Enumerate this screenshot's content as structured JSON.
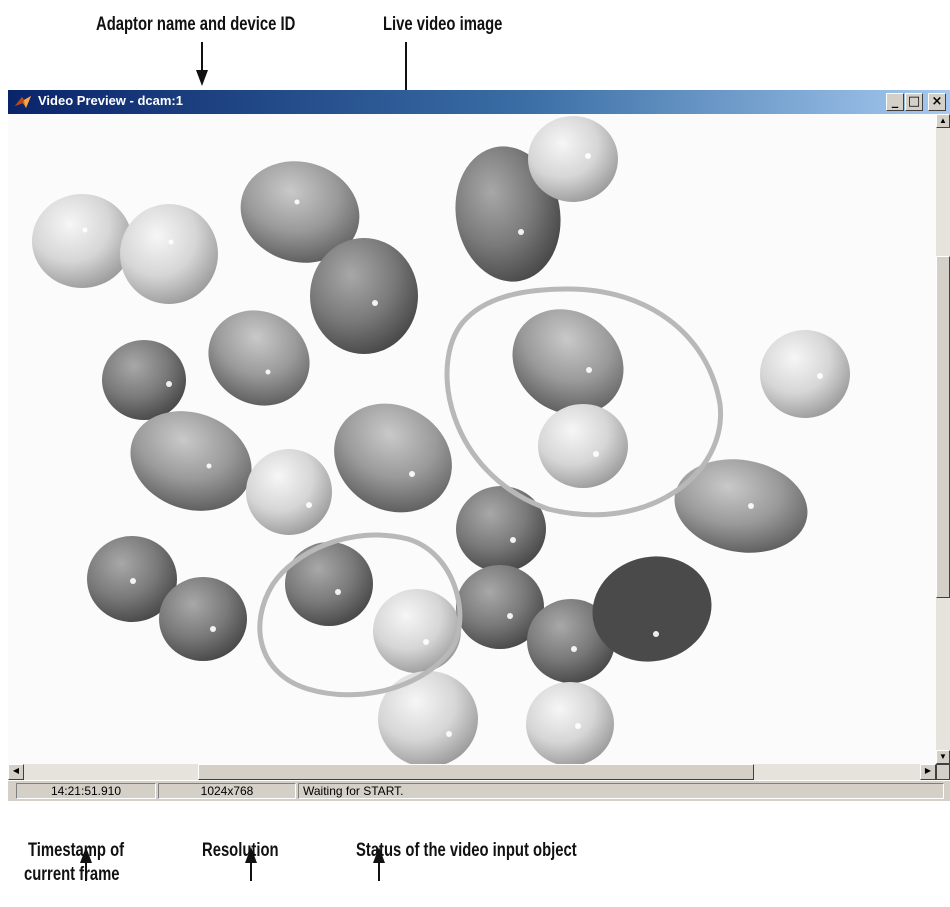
{
  "callouts": {
    "adaptor": "Adaptor name and device ID",
    "live_video": "Live video image",
    "timestamp_line1": "Timestamp of",
    "timestamp_line2": "current frame",
    "resolution": "Resolution",
    "status": "Status of the video input object"
  },
  "window": {
    "title": "Video Preview - dcam:1",
    "app_icon": "matlab-logo-icon",
    "controls": {
      "minimize": "_",
      "maximize": "□",
      "close": "×"
    }
  },
  "statusbar": {
    "timestamp": "14:21:51.910",
    "resolution": "1024x768",
    "status": "Waiting for START."
  },
  "scrollbars": {
    "up_arrow": "▲",
    "down_arrow": "▼",
    "left_arrow": "◀",
    "right_arrow": "▶"
  }
}
